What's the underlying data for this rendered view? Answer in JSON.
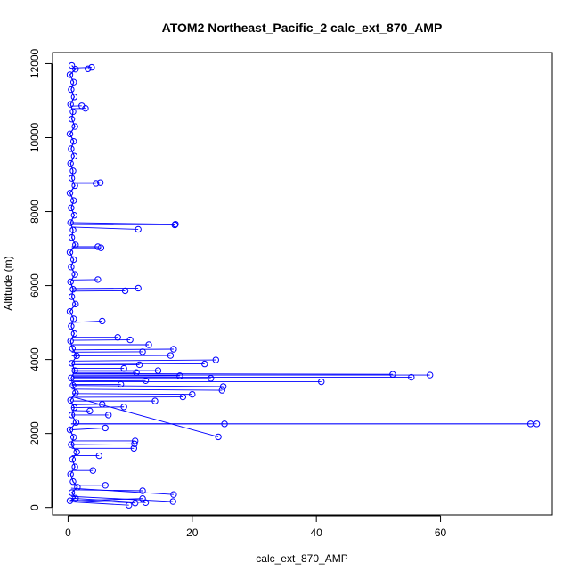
{
  "chart_data": {
    "type": "scatter",
    "title": "ATOM2 Northeast_Pacific_2 calc_ext_870_AMP",
    "xlabel": "calc_ext_870_AMP",
    "ylabel": "Altitude (m)",
    "xlim": [
      -2.5,
      78
    ],
    "ylim": [
      -200,
      12300
    ],
    "xticks": [
      0,
      20,
      40,
      60
    ],
    "yticks": [
      0,
      2000,
      4000,
      6000,
      8000,
      10000,
      12000
    ],
    "series_color": "#0000ff",
    "series": [
      {
        "style": "points-and-lines",
        "core_profile": [
          [
            0.3,
            180
          ],
          [
            1.2,
            250
          ],
          [
            0.6,
            400
          ],
          [
            1.5,
            550
          ],
          [
            0.8,
            700
          ],
          [
            0.4,
            900
          ],
          [
            1.1,
            1100
          ],
          [
            0.7,
            1300
          ],
          [
            1.4,
            1500
          ],
          [
            0.5,
            1700
          ],
          [
            0.9,
            1900
          ],
          [
            0.3,
            2100
          ],
          [
            1.3,
            2300
          ],
          [
            0.6,
            2500
          ],
          [
            1.0,
            2700
          ],
          [
            0.4,
            2900
          ],
          [
            1.2,
            3100
          ],
          [
            0.8,
            3300
          ],
          [
            0.5,
            3500
          ],
          [
            1.1,
            3700
          ],
          [
            0.6,
            3900
          ],
          [
            1.4,
            4100
          ],
          [
            0.7,
            4300
          ],
          [
            0.4,
            4500
          ],
          [
            1.0,
            4700
          ],
          [
            0.5,
            4900
          ],
          [
            0.9,
            5100
          ],
          [
            0.3,
            5300
          ],
          [
            1.2,
            5500
          ],
          [
            0.6,
            5700
          ],
          [
            0.8,
            5900
          ],
          [
            0.4,
            6100
          ],
          [
            1.1,
            6300
          ],
          [
            0.5,
            6500
          ],
          [
            0.9,
            6700
          ],
          [
            0.3,
            6900
          ],
          [
            1.2,
            7100
          ],
          [
            0.6,
            7300
          ],
          [
            0.8,
            7500
          ],
          [
            0.4,
            7700
          ],
          [
            1.0,
            7900
          ],
          [
            0.5,
            8100
          ],
          [
            0.9,
            8300
          ],
          [
            0.3,
            8500
          ],
          [
            1.1,
            8700
          ],
          [
            0.6,
            8900
          ],
          [
            0.8,
            9100
          ],
          [
            0.4,
            9300
          ],
          [
            1.0,
            9500
          ],
          [
            0.5,
            9700
          ],
          [
            0.9,
            9900
          ],
          [
            0.3,
            10100
          ],
          [
            1.1,
            10300
          ],
          [
            0.6,
            10500
          ],
          [
            0.8,
            10700
          ],
          [
            0.4,
            10900
          ],
          [
            1.0,
            11100
          ],
          [
            0.5,
            11300
          ],
          [
            0.9,
            11500
          ],
          [
            0.3,
            11700
          ],
          [
            1.2,
            11850
          ],
          [
            0.6,
            11950
          ]
        ],
        "excursions": [
          [
            0.5,
            2260,
            75.5,
            2260
          ],
          [
            0.5,
            2260,
            74.5,
            2260
          ],
          [
            0.5,
            2260,
            25.2,
            2260
          ],
          [
            0.8,
            3580,
            58.3,
            3580
          ],
          [
            0.8,
            3520,
            55.3,
            3520
          ],
          [
            0.8,
            3620,
            52.3,
            3600
          ],
          [
            0.8,
            3400,
            40.8,
            3400
          ],
          [
            0.6,
            3000,
            24.2,
            1910
          ],
          [
            0.6,
            3300,
            25.0,
            3270
          ],
          [
            0.6,
            3200,
            24.8,
            3170
          ],
          [
            0.7,
            3960,
            23.8,
            3990
          ],
          [
            0.7,
            3900,
            22.0,
            3880
          ],
          [
            0.7,
            3490,
            23.0,
            3490
          ],
          [
            0.7,
            3550,
            18.0,
            3560
          ],
          [
            0.7,
            4260,
            17.0,
            4280
          ],
          [
            0.7,
            4400,
            13.0,
            4400
          ],
          [
            0.7,
            4520,
            10.0,
            4530
          ],
          [
            0.7,
            4600,
            8.0,
            4600
          ],
          [
            0.6,
            7700,
            17.3,
            7660
          ],
          [
            0.6,
            7650,
            17.2,
            7640
          ],
          [
            0.6,
            7580,
            11.3,
            7520
          ],
          [
            0.7,
            5920,
            11.3,
            5930
          ],
          [
            0.7,
            5850,
            9.2,
            5860
          ],
          [
            0.7,
            3080,
            20.0,
            3060
          ],
          [
            0.7,
            2980,
            18.5,
            2990
          ],
          [
            0.7,
            2880,
            14.0,
            2880
          ],
          [
            0.7,
            3700,
            14.5,
            3700
          ],
          [
            0.7,
            3650,
            11.0,
            3650
          ],
          [
            0.6,
            1800,
            10.8,
            1800
          ],
          [
            0.6,
            1700,
            10.7,
            1720
          ],
          [
            0.6,
            1600,
            10.6,
            1600
          ],
          [
            0.5,
            520,
            17.0,
            350
          ],
          [
            0.5,
            480,
            12.0,
            450
          ],
          [
            0.5,
            300,
            16.9,
            160
          ],
          [
            0.5,
            250,
            12.5,
            130
          ],
          [
            0.5,
            200,
            10.8,
            120
          ],
          [
            0.5,
            150,
            9.8,
            60
          ],
          [
            0.5,
            180,
            12.0,
            240
          ],
          [
            0.6,
            8780,
            5.2,
            8780
          ],
          [
            0.6,
            8760,
            4.5,
            8760
          ],
          [
            0.6,
            7020,
            5.3,
            7020
          ],
          [
            0.6,
            7050,
            4.8,
            7050
          ],
          [
            0.6,
            11880,
            3.8,
            11900
          ],
          [
            0.6,
            11850,
            3.2,
            11860
          ],
          [
            0.6,
            10780,
            2.8,
            10790
          ],
          [
            0.6,
            10850,
            2.2,
            10860
          ],
          [
            0.6,
            5000,
            5.5,
            5040
          ],
          [
            0.6,
            6150,
            4.8,
            6160
          ],
          [
            0.6,
            2500,
            6.5,
            2500
          ],
          [
            0.6,
            2700,
            9.0,
            2720
          ],
          [
            0.6,
            2100,
            6.0,
            2150
          ],
          [
            0.6,
            1400,
            5.0,
            1400
          ],
          [
            0.6,
            1000,
            4.0,
            1000
          ],
          [
            0.6,
            600,
            6.0,
            600
          ],
          [
            0.6,
            4100,
            16.5,
            4110
          ],
          [
            0.6,
            4200,
            12.0,
            4210
          ],
          [
            0.6,
            3760,
            9.0,
            3760
          ],
          [
            0.6,
            3860,
            11.5,
            3860
          ],
          [
            0.6,
            3420,
            12.5,
            3430
          ],
          [
            0.6,
            3330,
            8.5,
            3330
          ],
          [
            0.6,
            2780,
            5.5,
            2790
          ],
          [
            0.6,
            2620,
            3.5,
            2610
          ]
        ]
      }
    ]
  }
}
